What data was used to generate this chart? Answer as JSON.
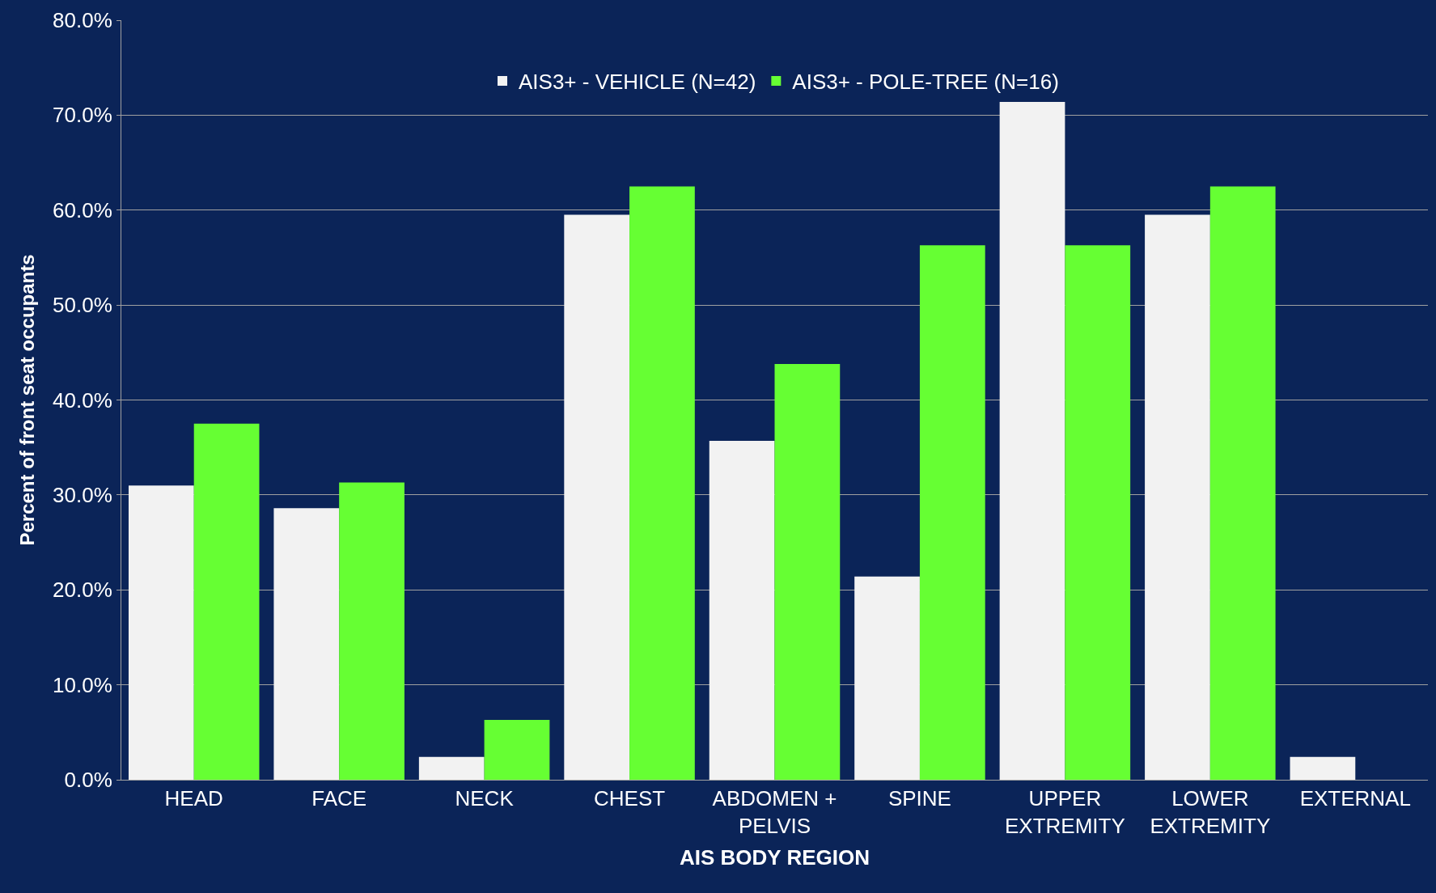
{
  "chart_data": {
    "type": "bar",
    "xlabel": "AIS BODY REGION",
    "ylabel": "Percent of front seat occupants",
    "categories": [
      "HEAD",
      "FACE",
      "NECK",
      "CHEST",
      "ABDOMEN +\nPELVIS",
      "SPINE",
      "UPPER\nEXTREMITY",
      "LOWER\nEXTREMITY",
      "EXTERNAL"
    ],
    "series": [
      {
        "name": "AIS3+ - VEHICLE (N=42)",
        "color": "#f2f2f2",
        "values": [
          31.0,
          28.6,
          2.4,
          59.5,
          35.7,
          21.4,
          71.4,
          59.5,
          2.4
        ]
      },
      {
        "name": "AIS3+ - POLE-TREE (N=16)",
        "color": "#66ff33",
        "values": [
          37.5,
          31.3,
          6.3,
          62.5,
          43.8,
          56.3,
          56.3,
          62.5,
          0
        ]
      }
    ],
    "ylim": [
      0,
      80
    ],
    "yticks": [
      {
        "value": 0,
        "label": "0.0%"
      },
      {
        "value": 10,
        "label": "10.0%"
      },
      {
        "value": 20,
        "label": "20.0%"
      },
      {
        "value": 30,
        "label": "30.0%"
      },
      {
        "value": 40,
        "label": "40.0%"
      },
      {
        "value": 50,
        "label": "50.0%"
      },
      {
        "value": 60,
        "label": "60.0%"
      },
      {
        "value": 70,
        "label": "70.0%"
      },
      {
        "value": 80,
        "label": "80.0%"
      }
    ],
    "grid": "y",
    "legend": "top"
  }
}
